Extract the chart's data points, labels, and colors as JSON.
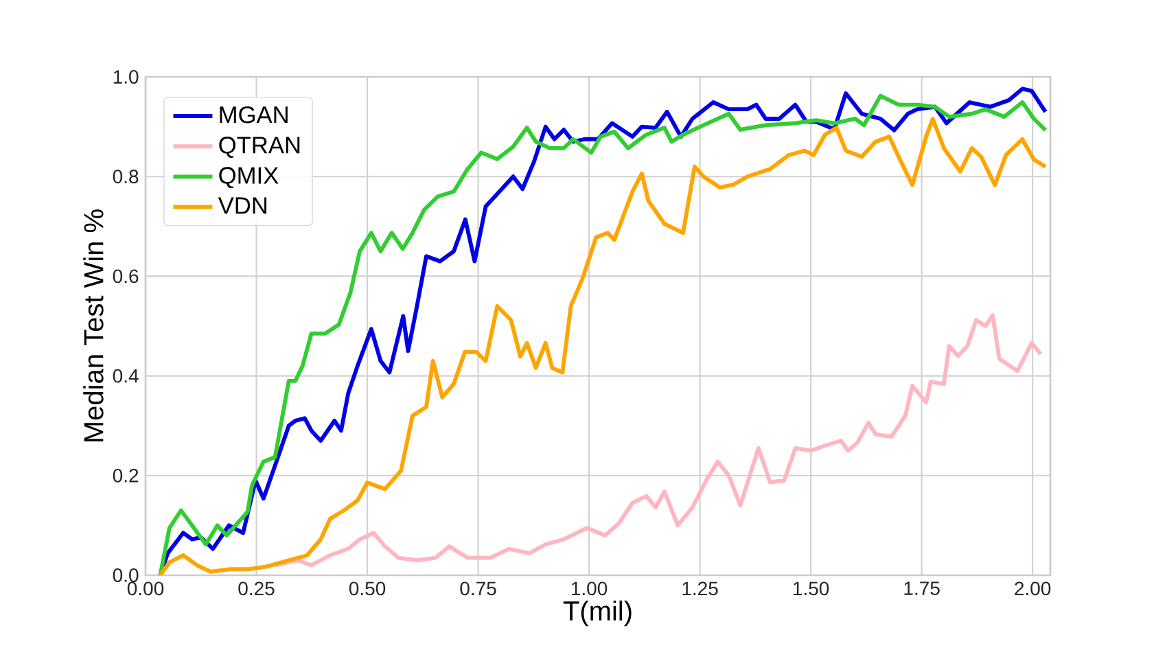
{
  "chart_data": {
    "type": "line",
    "xlabel": "T(mil)",
    "ylabel": "Median Test Win %",
    "xlim": [
      0,
      2.04
    ],
    "ylim": [
      0,
      1
    ],
    "xticks": [
      {
        "value": 0,
        "label": "0.00"
      },
      {
        "value": 0.25,
        "label": "0.25"
      },
      {
        "value": 0.5,
        "label": "0.50"
      },
      {
        "value": 0.75,
        "label": "0.75"
      },
      {
        "value": 1,
        "label": "1.00"
      },
      {
        "value": 1.25,
        "label": "1.25"
      },
      {
        "value": 1.5,
        "label": "1.50"
      },
      {
        "value": 1.75,
        "label": "1.75"
      },
      {
        "value": 2,
        "label": "2.00"
      }
    ],
    "yticks": [
      {
        "value": 0,
        "label": "0.0"
      },
      {
        "value": 0.2,
        "label": "0.2"
      },
      {
        "value": 0.4,
        "label": "0.4"
      },
      {
        "value": 0.6,
        "label": "0.6"
      },
      {
        "value": 0.8,
        "label": "0.8"
      },
      {
        "value": 1,
        "label": "1.0"
      }
    ],
    "grid": true,
    "legend": "top left",
    "marker": "none",
    "line_style": "solid",
    "series": [
      {
        "name": "MGAN",
        "color": "#0000e6",
        "x": [
          0.033,
          0.05,
          0.085,
          0.105,
          0.125,
          0.152,
          0.188,
          0.22,
          0.248,
          0.266,
          0.292,
          0.323,
          0.338,
          0.359,
          0.374,
          0.395,
          0.426,
          0.441,
          0.457,
          0.478,
          0.509,
          0.53,
          0.55,
          0.581,
          0.592,
          0.612,
          0.633,
          0.664,
          0.695,
          0.721,
          0.742,
          0.767,
          0.798,
          0.829,
          0.85,
          0.876,
          0.902,
          0.922,
          0.943,
          0.964,
          0.99,
          1.02,
          1.052,
          1.098,
          1.119,
          1.15,
          1.176,
          1.207,
          1.233,
          1.28,
          1.315,
          1.357,
          1.377,
          1.398,
          1.429,
          1.465,
          1.49,
          1.512,
          1.553,
          1.579,
          1.615,
          1.657,
          1.688,
          1.719,
          1.74,
          1.78,
          1.806,
          1.858,
          1.905,
          1.946,
          1.977,
          1.998,
          2.029
        ],
        "values": [
          0,
          0.044,
          0.085,
          0.072,
          0.076,
          0.053,
          0.1,
          0.085,
          0.19,
          0.154,
          0.22,
          0.3,
          0.31,
          0.315,
          0.29,
          0.27,
          0.31,
          0.29,
          0.365,
          0.42,
          0.494,
          0.43,
          0.407,
          0.52,
          0.45,
          0.54,
          0.64,
          0.63,
          0.65,
          0.714,
          0.63,
          0.74,
          0.77,
          0.8,
          0.775,
          0.83,
          0.9,
          0.875,
          0.894,
          0.87,
          0.875,
          0.875,
          0.907,
          0.88,
          0.9,
          0.898,
          0.93,
          0.88,
          0.916,
          0.949,
          0.935,
          0.935,
          0.944,
          0.916,
          0.916,
          0.944,
          0.91,
          0.91,
          0.895,
          0.967,
          0.926,
          0.916,
          0.893,
          0.926,
          0.935,
          0.94,
          0.907,
          0.949,
          0.94,
          0.953,
          0.976,
          0.972,
          0.93
        ]
      },
      {
        "name": "QTRAN",
        "color": "#ffb6c1",
        "x": [
          0.292,
          0.343,
          0.374,
          0.416,
          0.457,
          0.483,
          0.514,
          0.54,
          0.57,
          0.612,
          0.654,
          0.685,
          0.726,
          0.778,
          0.819,
          0.865,
          0.902,
          0.943,
          0.995,
          1.036,
          1.067,
          1.098,
          1.129,
          1.15,
          1.17,
          1.2,
          1.233,
          1.264,
          1.29,
          1.315,
          1.341,
          1.382,
          1.408,
          1.44,
          1.465,
          1.5,
          1.532,
          1.568,
          1.584,
          1.605,
          1.63,
          1.646,
          1.682,
          1.713,
          1.729,
          1.76,
          1.77,
          1.8,
          1.812,
          1.832,
          1.853,
          1.873,
          1.894,
          1.91,
          1.925,
          1.966,
          1.998,
          2.018
        ],
        "values": [
          0.02,
          0.03,
          0.02,
          0.04,
          0.053,
          0.072,
          0.085,
          0.058,
          0.035,
          0.03,
          0.035,
          0.058,
          0.035,
          0.035,
          0.053,
          0.044,
          0.062,
          0.072,
          0.095,
          0.08,
          0.104,
          0.145,
          0.159,
          0.136,
          0.168,
          0.1,
          0.136,
          0.19,
          0.228,
          0.2,
          0.14,
          0.255,
          0.187,
          0.19,
          0.255,
          0.25,
          0.26,
          0.27,
          0.25,
          0.266,
          0.306,
          0.283,
          0.278,
          0.32,
          0.38,
          0.347,
          0.388,
          0.384,
          0.46,
          0.44,
          0.46,
          0.512,
          0.5,
          0.522,
          0.434,
          0.41,
          0.466,
          0.444
        ]
      },
      {
        "name": "QMIX",
        "color": "#32cd32",
        "x": [
          0.033,
          0.054,
          0.08,
          0.105,
          0.136,
          0.162,
          0.183,
          0.23,
          0.24,
          0.266,
          0.292,
          0.323,
          0.338,
          0.354,
          0.374,
          0.405,
          0.436,
          0.462,
          0.483,
          0.509,
          0.53,
          0.555,
          0.58,
          0.602,
          0.628,
          0.659,
          0.695,
          0.726,
          0.757,
          0.793,
          0.829,
          0.86,
          0.88,
          0.912,
          0.943,
          0.964,
          1.005,
          1.026,
          1.057,
          1.088,
          1.129,
          1.17,
          1.186,
          1.212,
          1.258,
          1.315,
          1.341,
          1.398,
          1.465,
          1.512,
          1.553,
          1.6,
          1.62,
          1.657,
          1.698,
          1.74,
          1.78,
          1.812,
          1.863,
          1.894,
          1.936,
          1.977,
          2.003,
          2.029
        ],
        "values": [
          0,
          0.095,
          0.13,
          0.1,
          0.062,
          0.1,
          0.08,
          0.127,
          0.18,
          0.228,
          0.237,
          0.39,
          0.39,
          0.42,
          0.485,
          0.485,
          0.503,
          0.567,
          0.65,
          0.687,
          0.65,
          0.687,
          0.655,
          0.687,
          0.733,
          0.76,
          0.77,
          0.815,
          0.848,
          0.835,
          0.86,
          0.898,
          0.87,
          0.857,
          0.857,
          0.875,
          0.848,
          0.88,
          0.89,
          0.857,
          0.884,
          0.898,
          0.87,
          0.884,
          0.903,
          0.926,
          0.894,
          0.903,
          0.907,
          0.913,
          0.907,
          0.916,
          0.903,
          0.962,
          0.944,
          0.944,
          0.94,
          0.92,
          0.926,
          0.935,
          0.92,
          0.949,
          0.916,
          0.893
        ]
      },
      {
        "name": "VDN",
        "color": "#ffa500",
        "x": [
          0.033,
          0.054,
          0.085,
          0.116,
          0.147,
          0.188,
          0.23,
          0.271,
          0.323,
          0.364,
          0.395,
          0.416,
          0.447,
          0.478,
          0.5,
          0.54,
          0.576,
          0.602,
          0.633,
          0.648,
          0.669,
          0.695,
          0.72,
          0.746,
          0.767,
          0.793,
          0.824,
          0.845,
          0.86,
          0.88,
          0.902,
          0.917,
          0.94,
          0.959,
          0.985,
          1.016,
          1.042,
          1.057,
          1.098,
          1.119,
          1.134,
          1.17,
          1.212,
          1.238,
          1.258,
          1.295,
          1.326,
          1.357,
          1.408,
          1.45,
          1.486,
          1.506,
          1.532,
          1.558,
          1.579,
          1.615,
          1.646,
          1.677,
          1.698,
          1.729,
          1.76,
          1.775,
          1.8,
          1.837,
          1.863,
          1.884,
          1.915,
          1.94,
          1.977,
          2.003,
          2.029
        ],
        "values": [
          0,
          0.026,
          0.04,
          0.02,
          0.007,
          0.012,
          0.012,
          0.017,
          0.03,
          0.04,
          0.072,
          0.113,
          0.13,
          0.15,
          0.186,
          0.173,
          0.21,
          0.32,
          0.338,
          0.43,
          0.357,
          0.384,
          0.448,
          0.448,
          0.43,
          0.54,
          0.512,
          0.439,
          0.466,
          0.416,
          0.466,
          0.416,
          0.407,
          0.54,
          0.595,
          0.678,
          0.687,
          0.673,
          0.77,
          0.806,
          0.751,
          0.705,
          0.687,
          0.82,
          0.8,
          0.778,
          0.784,
          0.8,
          0.815,
          0.843,
          0.852,
          0.843,
          0.884,
          0.898,
          0.852,
          0.84,
          0.87,
          0.88,
          0.84,
          0.783,
          0.88,
          0.916,
          0.857,
          0.81,
          0.857,
          0.84,
          0.783,
          0.843,
          0.875,
          0.834,
          0.82
        ]
      }
    ]
  }
}
